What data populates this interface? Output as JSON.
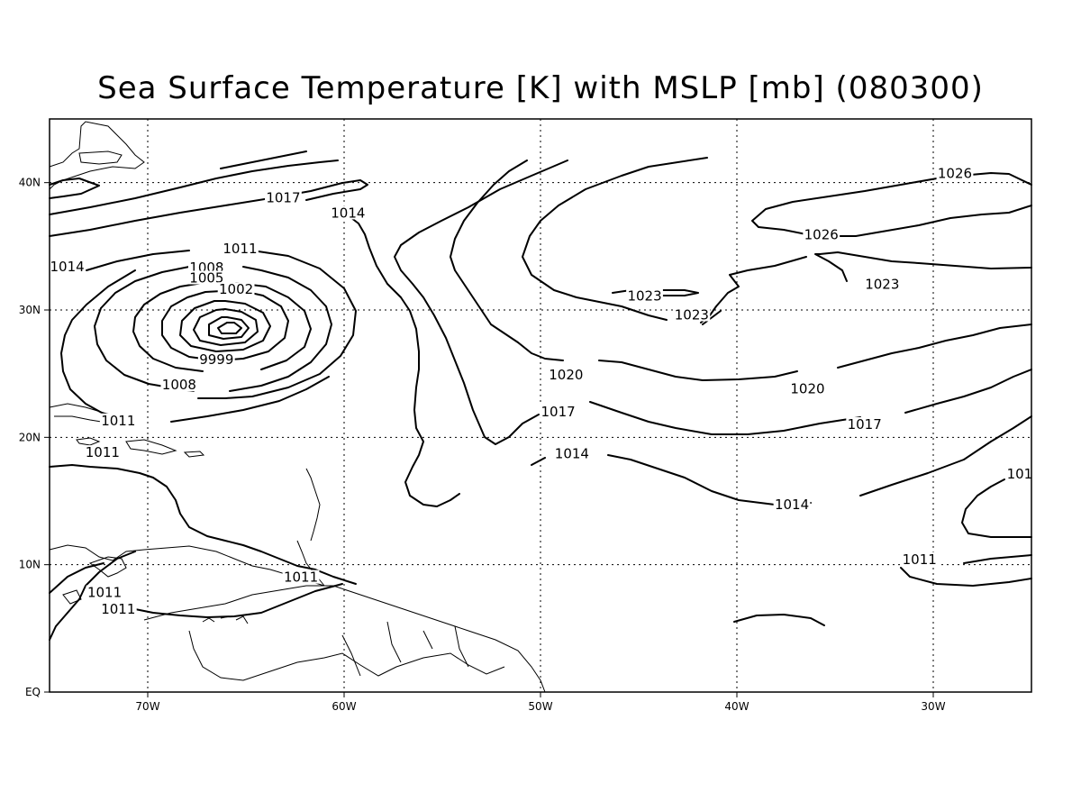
{
  "title": "Sea Surface Temperature [K] with MSLP [mb] (080300)",
  "map": {
    "lon_range": [
      -75,
      -25
    ],
    "lat_range": [
      0,
      45
    ],
    "lon_ticks": [
      {
        "value": -70,
        "label": "70W"
      },
      {
        "value": -60,
        "label": "60W"
      },
      {
        "value": -50,
        "label": "50W"
      },
      {
        "value": -40,
        "label": "40W"
      },
      {
        "value": -30,
        "label": "30W"
      }
    ],
    "lat_ticks": [
      {
        "value": 0,
        "label": "EQ"
      },
      {
        "value": 10,
        "label": "10N"
      },
      {
        "value": 20,
        "label": "20N"
      },
      {
        "value": 30,
        "label": "30N"
      },
      {
        "value": 40,
        "label": "40N"
      }
    ],
    "grid": "dotted"
  },
  "contour_labels": [
    {
      "text": "1026",
      "lon": -28.9,
      "lat": 40.5
    },
    {
      "text": "1026",
      "lon": -35.7,
      "lat": 35.7
    },
    {
      "text": "1023",
      "lon": -32.6,
      "lat": 31.8
    },
    {
      "text": "1023",
      "lon": -44.7,
      "lat": 30.9
    },
    {
      "text": "1023",
      "lon": -42.3,
      "lat": 29.4
    },
    {
      "text": "1020",
      "lon": -48.7,
      "lat": 24.7
    },
    {
      "text": "1020",
      "lon": -36.4,
      "lat": 23.6
    },
    {
      "text": "1017",
      "lon": -49.1,
      "lat": 21.8
    },
    {
      "text": "1017",
      "lon": -33.5,
      "lat": 20.8
    },
    {
      "text": "1014",
      "lon": -48.4,
      "lat": 18.5
    },
    {
      "text": "1014",
      "lon": -37.2,
      "lat": 14.5
    },
    {
      "text": "101",
      "lon": -25.6,
      "lat": 16.9
    },
    {
      "text": "1011",
      "lon": -30.7,
      "lat": 10.2
    },
    {
      "text": "1017",
      "lon": -63.1,
      "lat": 38.6
    },
    {
      "text": "1014",
      "lon": -59.8,
      "lat": 37.4
    },
    {
      "text": "1014",
      "lon": -74.1,
      "lat": 33.2
    },
    {
      "text": "1011",
      "lon": -65.3,
      "lat": 34.6
    },
    {
      "text": "1008",
      "lon": -67.0,
      "lat": 33.1
    },
    {
      "text": "1005",
      "lon": -67.0,
      "lat": 32.3
    },
    {
      "text": "1002",
      "lon": -65.5,
      "lat": 31.4
    },
    {
      "text": "9999",
      "lon": -66.5,
      "lat": 25.9
    },
    {
      "text": "1008",
      "lon": -68.4,
      "lat": 23.9
    },
    {
      "text": "1011",
      "lon": -71.5,
      "lat": 21.1
    },
    {
      "text": "1011",
      "lon": -72.3,
      "lat": 18.6
    },
    {
      "text": "1011",
      "lon": -62.2,
      "lat": 8.8
    },
    {
      "text": "1011",
      "lon": -72.2,
      "lat": 7.6
    },
    {
      "text": "1011",
      "lon": -71.5,
      "lat": 6.3
    }
  ]
}
